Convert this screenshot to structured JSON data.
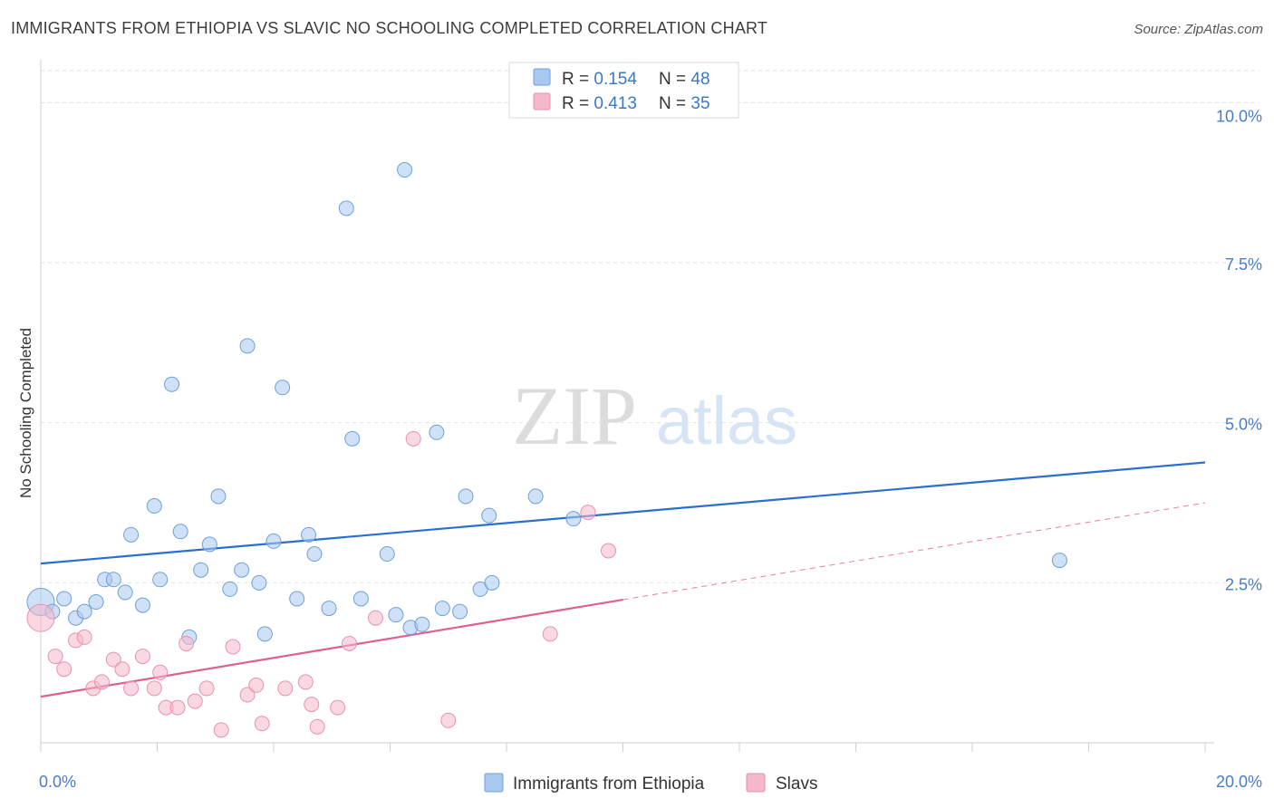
{
  "header": {
    "title": "IMMIGRANTS FROM ETHIOPIA VS SLAVIC NO SCHOOLING COMPLETED CORRELATION CHART",
    "source": "Source: ZipAtlas.com"
  },
  "watermark": {
    "zip": "ZIP",
    "atlas": "atlas"
  },
  "legend_top": [
    {
      "r_label": "R = ",
      "r_value": "0.154",
      "n_label": "N = ",
      "n_value": "48",
      "color": "#a8c8f0"
    },
    {
      "r_label": "R = ",
      "r_value": "0.413",
      "n_label": "N = ",
      "n_value": "35",
      "color": "#f5b8cb"
    }
  ],
  "chart_data": {
    "type": "scatter",
    "title": "IMMIGRANTS FROM ETHIOPIA VS SLAVIC NO SCHOOLING COMPLETED CORRELATION CHART",
    "xlabel": "",
    "ylabel": "No Schooling Completed",
    "xlim": [
      0,
      20
    ],
    "ylim": [
      0,
      10.5
    ],
    "x_tick_labels": [
      {
        "value": 0,
        "label": "0.0%"
      },
      {
        "value": 20,
        "label": "20.0%"
      }
    ],
    "y_tick_labels": [
      {
        "value": 2.5,
        "label": "2.5%"
      },
      {
        "value": 5.0,
        "label": "5.0%"
      },
      {
        "value": 7.5,
        "label": "7.5%"
      },
      {
        "value": 10.0,
        "label": "10.0%"
      }
    ],
    "series": [
      {
        "name": "Immigrants from Ethiopia",
        "color": "#a8c8f0",
        "stroke": "#6f9fd8",
        "line_color": "#2a6fd0",
        "trend": {
          "x0": 0,
          "y0": 2.8,
          "x1": 20,
          "y1": 4.38,
          "solid_to": 20
        },
        "points": [
          [
            0.0,
            2.2
          ],
          [
            0.2,
            2.05
          ],
          [
            0.4,
            2.25
          ],
          [
            0.6,
            1.95
          ],
          [
            0.75,
            2.05
          ],
          [
            0.95,
            2.2
          ],
          [
            1.1,
            2.55
          ],
          [
            1.25,
            2.55
          ],
          [
            1.45,
            2.35
          ],
          [
            1.55,
            3.25
          ],
          [
            1.75,
            2.15
          ],
          [
            1.95,
            3.7
          ],
          [
            2.05,
            2.55
          ],
          [
            2.25,
            5.6
          ],
          [
            2.4,
            3.3
          ],
          [
            2.55,
            1.65
          ],
          [
            2.75,
            2.7
          ],
          [
            2.9,
            3.1
          ],
          [
            3.05,
            3.85
          ],
          [
            3.25,
            2.4
          ],
          [
            3.45,
            2.7
          ],
          [
            3.55,
            6.2
          ],
          [
            3.75,
            2.5
          ],
          [
            3.85,
            1.7
          ],
          [
            4.0,
            3.15
          ],
          [
            4.15,
            5.55
          ],
          [
            4.4,
            2.25
          ],
          [
            4.6,
            3.25
          ],
          [
            4.7,
            2.95
          ],
          [
            4.95,
            2.1
          ],
          [
            5.25,
            8.35
          ],
          [
            5.35,
            4.75
          ],
          [
            5.5,
            2.25
          ],
          [
            5.95,
            2.95
          ],
          [
            6.1,
            2.0
          ],
          [
            6.25,
            8.95
          ],
          [
            6.35,
            1.8
          ],
          [
            6.55,
            1.85
          ],
          [
            6.8,
            4.85
          ],
          [
            6.9,
            2.1
          ],
          [
            7.2,
            2.05
          ],
          [
            7.3,
            3.85
          ],
          [
            7.55,
            2.4
          ],
          [
            7.7,
            3.55
          ],
          [
            7.75,
            2.5
          ],
          [
            8.5,
            3.85
          ],
          [
            9.15,
            3.5
          ],
          [
            17.5,
            2.85
          ]
        ]
      },
      {
        "name": "Slavs",
        "color": "#f5b8cb",
        "stroke": "#e892ad",
        "line_color": "#e0608a",
        "trend": {
          "x0": 0,
          "y0": 0.72,
          "x1": 20,
          "y1": 3.75,
          "solid_to": 10.0
        },
        "points": [
          [
            0.0,
            1.95
          ],
          [
            0.25,
            1.35
          ],
          [
            0.4,
            1.15
          ],
          [
            0.6,
            1.6
          ],
          [
            0.75,
            1.65
          ],
          [
            0.9,
            0.85
          ],
          [
            1.05,
            0.95
          ],
          [
            1.25,
            1.3
          ],
          [
            1.4,
            1.15
          ],
          [
            1.55,
            0.85
          ],
          [
            1.75,
            1.35
          ],
          [
            1.95,
            0.85
          ],
          [
            2.05,
            1.1
          ],
          [
            2.15,
            0.55
          ],
          [
            2.35,
            0.55
          ],
          [
            2.5,
            1.55
          ],
          [
            2.65,
            0.65
          ],
          [
            2.85,
            0.85
          ],
          [
            3.1,
            0.2
          ],
          [
            3.3,
            1.5
          ],
          [
            3.55,
            0.75
          ],
          [
            3.7,
            0.9
          ],
          [
            3.8,
            0.3
          ],
          [
            4.2,
            0.85
          ],
          [
            4.55,
            0.95
          ],
          [
            4.65,
            0.6
          ],
          [
            4.75,
            0.25
          ],
          [
            5.1,
            0.55
          ],
          [
            5.3,
            1.55
          ],
          [
            5.75,
            1.95
          ],
          [
            6.4,
            4.75
          ],
          [
            7.0,
            0.35
          ],
          [
            8.75,
            1.7
          ],
          [
            9.4,
            3.6
          ],
          [
            9.75,
            3.0
          ]
        ]
      }
    ]
  }
}
